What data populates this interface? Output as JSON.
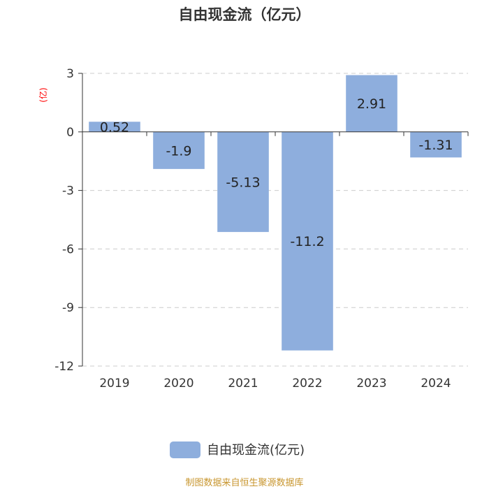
{
  "chart_data": {
    "type": "bar",
    "title": "自由现金流（亿元）",
    "unit_label": "(亿)",
    "categories": [
      "2019",
      "2020",
      "2021",
      "2022",
      "2023",
      "2024"
    ],
    "series": [
      {
        "name": "自由现金流(亿元)",
        "values": [
          0.52,
          -1.9,
          -5.13,
          -11.2,
          2.91,
          -1.31
        ],
        "color": "#8eaedd"
      }
    ],
    "data_labels": [
      "0.52",
      "-1.9",
      "-5.13",
      "-11.2",
      "2.91",
      "-1.31"
    ],
    "yticks": [
      3,
      0,
      -3,
      -6,
      -9,
      -12
    ],
    "ylim": [
      -12,
      3
    ],
    "grid": true,
    "legend_position": "bottom-center"
  },
  "source": "制图数据来自恒生聚源数据库"
}
